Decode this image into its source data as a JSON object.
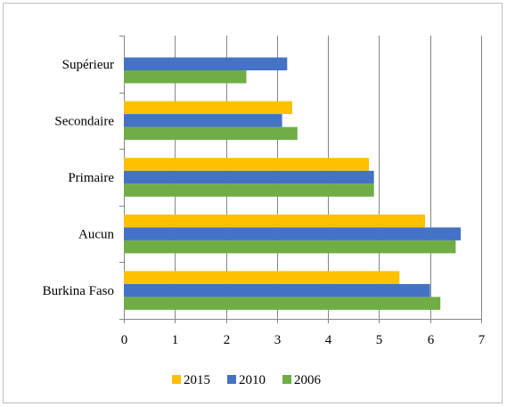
{
  "chart_data": {
    "type": "bar",
    "orientation": "horizontal",
    "categories": [
      "Supérieur",
      "Secondaire",
      "Primaire",
      "Aucun",
      "Burkina Faso"
    ],
    "series": [
      {
        "name": "2015",
        "color": "#ffc000",
        "values": [
          null,
          3.3,
          4.8,
          5.9,
          5.4
        ]
      },
      {
        "name": "2010",
        "color": "#4472c4",
        "values": [
          3.2,
          3.1,
          4.9,
          6.6,
          6.0
        ]
      },
      {
        "name": "2006",
        "color": "#70ad47",
        "values": [
          2.4,
          3.4,
          4.9,
          6.5,
          6.2
        ]
      }
    ],
    "xlim": [
      0,
      7
    ],
    "xticks": [
      "0",
      "1",
      "2",
      "3",
      "4",
      "5",
      "6",
      "7"
    ],
    "grid": true,
    "legend": "bottom",
    "title": "",
    "xlabel": "",
    "ylabel": ""
  }
}
